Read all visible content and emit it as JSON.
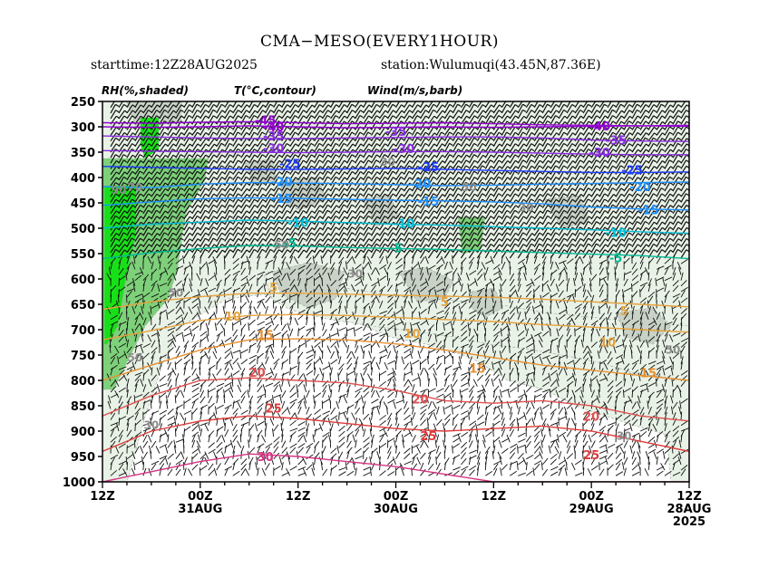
{
  "header": {
    "title": "CMA−MESO(EVERY1HOUR)",
    "starttime": "starttime:12Z28AUG2025",
    "station": "station:Wulumuqi(43.45N,87.36E)"
  },
  "legend_labels": {
    "rh": "RH(%,shaded)",
    "temp": "T(°C,contour)",
    "wind": "Wind(m/s,barb)"
  },
  "chart_data": {
    "type": "time-pressure cross section",
    "title": "CMA−MESO(EVERY1HOUR)",
    "variables": [
      "RH(%,shaded)",
      "T(°C,contour)",
      "Wind(m/s,barb)"
    ],
    "x_axis_direction": "time decreasing left to right",
    "x_ticks": [
      {
        "hour_from_left": 0,
        "label": "12Z",
        "sub": ""
      },
      {
        "hour_from_left": 12,
        "label": "00Z",
        "sub": "31AUG"
      },
      {
        "hour_from_left": 24,
        "label": "12Z",
        "sub": ""
      },
      {
        "hour_from_left": 36,
        "label": "00Z",
        "sub": "30AUG"
      },
      {
        "hour_from_left": 48,
        "label": "12Z",
        "sub": ""
      },
      {
        "hour_from_left": 60,
        "label": "00Z",
        "sub": "29AUG"
      },
      {
        "hour_from_left": 72,
        "label": "12Z",
        "sub": "28AUG",
        "sub2": "2025"
      }
    ],
    "y_levels": [
      250,
      300,
      350,
      400,
      450,
      500,
      550,
      600,
      650,
      700,
      750,
      800,
      850,
      900,
      950,
      1000
    ],
    "ylim": [
      1000,
      250
    ],
    "temperature_contours": [
      {
        "value": -45,
        "color": "#9400d3",
        "pressure": [
          292,
          293,
          291,
          290,
          292,
          294,
          293,
          292,
          294,
          296,
          297,
          298,
          299
        ]
      },
      {
        "value": -40,
        "color": "#9400d3",
        "pressure": [
          300,
          301,
          300,
          298,
          300,
          302,
          301,
          300,
          301,
          300,
          299,
          298,
          297
        ]
      },
      {
        "value": -35,
        "color": "#8a2be2",
        "pressure": [
          318,
          320,
          322,
          323,
          323,
          322,
          321,
          320,
          320,
          322,
          326,
          328,
          329
        ]
      },
      {
        "value": -30,
        "color": "#8a2be2",
        "pressure": [
          347,
          348,
          349,
          350,
          351,
          350,
          349,
          349,
          350,
          352,
          354,
          355,
          355
        ]
      },
      {
        "value": -25,
        "color": "#1e3cff",
        "pressure": [
          378,
          380,
          382,
          384,
          384,
          383,
          382,
          384,
          386,
          388,
          390,
          390,
          389
        ]
      },
      {
        "value": -20,
        "color": "#1e90ff",
        "pressure": [
          418,
          420,
          413,
          410,
          411,
          412,
          414,
          416,
          415,
          413,
          412,
          410,
          409
        ]
      },
      {
        "value": -15,
        "color": "#1e90ff",
        "pressure": [
          455,
          448,
          442,
          440,
          441,
          443,
          445,
          446,
          448,
          452,
          458,
          462,
          464
        ]
      },
      {
        "value": -10,
        "color": "#00bcd4",
        "pressure": [
          500,
          492,
          488,
          484,
          486,
          489,
          492,
          494,
          497,
          500,
          503,
          507,
          510
        ]
      },
      {
        "value": -5,
        "color": "#00b894",
        "pressure": [
          560,
          548,
          540,
          534,
          535,
          538,
          540,
          542,
          545,
          548,
          551,
          554,
          560
        ]
      },
      {
        "value": 5,
        "color": "#e6a23c",
        "pressure": [
          660,
          645,
          635,
          628,
          628,
          630,
          632,
          634,
          636,
          640,
          645,
          650,
          655
        ]
      },
      {
        "value": 10,
        "color": "#e6a23c",
        "pressure": [
          720,
          702,
          682,
          672,
          670,
          672,
          676,
          680,
          684,
          690,
          695,
          700,
          705
        ]
      },
      {
        "value": 15,
        "color": "#e89030",
        "pressure": [
          800,
          770,
          740,
          720,
          718,
          720,
          728,
          740,
          755,
          770,
          780,
          790,
          800
        ]
      },
      {
        "value": 20,
        "color": "#e05050",
        "pressure": [
          870,
          830,
          800,
          795,
          800,
          805,
          820,
          840,
          845,
          840,
          850,
          870,
          880
        ]
      },
      {
        "value": 25,
        "color": "#e03a3a",
        "pressure": [
          940,
          900,
          880,
          870,
          875,
          885,
          895,
          900,
          895,
          890,
          900,
          920,
          940
        ]
      },
      {
        "value": 30,
        "color": "#d63384",
        "pressure": [
          1000,
          980,
          960,
          945,
          950,
          960,
          970,
          985,
          1000,
          1000,
          1000,
          1000,
          1000
        ]
      }
    ],
    "contour_labels": [
      {
        "text": "-45",
        "hour": 20,
        "pressure": 288,
        "color": "#9400d3"
      },
      {
        "text": "-40",
        "hour": 21,
        "pressure": 302,
        "color": "#9400d3"
      },
      {
        "text": "-35",
        "hour": 21,
        "pressure": 320,
        "color": "#8a2be2"
      },
      {
        "text": "-30",
        "hour": 21,
        "pressure": 344,
        "color": "#8a2be2"
      },
      {
        "text": "-25",
        "hour": 23,
        "pressure": 374,
        "color": "#1e3cff"
      },
      {
        "text": "-20",
        "hour": 22,
        "pressure": 410,
        "color": "#1e90ff"
      },
      {
        "text": "-15",
        "hour": 22,
        "pressure": 443,
        "color": "#1e90ff"
      },
      {
        "text": "-10",
        "hour": 24,
        "pressure": 490,
        "color": "#00bcd4"
      },
      {
        "text": "-5",
        "hour": 23,
        "pressure": 530,
        "color": "#00b894"
      },
      {
        "text": "-35",
        "hour": 36,
        "pressure": 311,
        "color": "#8a2be2"
      },
      {
        "text": "-30",
        "hour": 37,
        "pressure": 345,
        "color": "#8a2be2"
      },
      {
        "text": "-25",
        "hour": 40,
        "pressure": 380,
        "color": "#1e3cff"
      },
      {
        "text": "-20",
        "hour": 39,
        "pressure": 413,
        "color": "#1e90ff"
      },
      {
        "text": "-15",
        "hour": 40,
        "pressure": 448,
        "color": "#1e90ff"
      },
      {
        "text": "-10",
        "hour": 37,
        "pressure": 492,
        "color": "#00bcd4"
      },
      {
        "text": "-5",
        "hour": 36,
        "pressure": 540,
        "color": "#00b894"
      },
      {
        "text": "-40",
        "hour": 61,
        "pressure": 300,
        "color": "#9400d3"
      },
      {
        "text": "-35",
        "hour": 63,
        "pressure": 328,
        "color": "#8a2be2"
      },
      {
        "text": "-30",
        "hour": 61,
        "pressure": 352,
        "color": "#8a2be2"
      },
      {
        "text": "-25",
        "hour": 65,
        "pressure": 387,
        "color": "#1e3cff"
      },
      {
        "text": "-20",
        "hour": 66,
        "pressure": 420,
        "color": "#1e90ff"
      },
      {
        "text": "-15",
        "hour": 67,
        "pressure": 465,
        "color": "#1e90ff"
      },
      {
        "text": "-10",
        "hour": 63,
        "pressure": 510,
        "color": "#00bcd4"
      },
      {
        "text": "-5",
        "hour": 63,
        "pressure": 560,
        "color": "#00b894"
      },
      {
        "text": "5",
        "hour": 21,
        "pressure": 618,
        "color": "#e6a23c"
      },
      {
        "text": "10",
        "hour": 16,
        "pressure": 675,
        "color": "#e6a23c"
      },
      {
        "text": "15",
        "hour": 20,
        "pressure": 712,
        "color": "#e89030"
      },
      {
        "text": "20",
        "hour": 19,
        "pressure": 786,
        "color": "#e05050"
      },
      {
        "text": "25",
        "hour": 21,
        "pressure": 856,
        "color": "#e03a3a"
      },
      {
        "text": "30",
        "hour": 20,
        "pressure": 952,
        "color": "#d63384"
      },
      {
        "text": "5",
        "hour": 42,
        "pressure": 646,
        "color": "#e6a23c"
      },
      {
        "text": "10",
        "hour": 38,
        "pressure": 709,
        "color": "#e6a23c"
      },
      {
        "text": "15",
        "hour": 46,
        "pressure": 778,
        "color": "#e89030"
      },
      {
        "text": "20",
        "hour": 39,
        "pressure": 838,
        "color": "#e05050"
      },
      {
        "text": "25",
        "hour": 40,
        "pressure": 911,
        "color": "#e03a3a"
      },
      {
        "text": "5",
        "hour": 64,
        "pressure": 664,
        "color": "#e6a23c"
      },
      {
        "text": "10",
        "hour": 62,
        "pressure": 726,
        "color": "#e6a23c"
      },
      {
        "text": "15",
        "hour": 67,
        "pressure": 787,
        "color": "#e89030"
      },
      {
        "text": "20",
        "hour": 60,
        "pressure": 872,
        "color": "#e05050"
      },
      {
        "text": "25",
        "hour": 60,
        "pressure": 948,
        "color": "#e03a3a"
      }
    ],
    "rh_labels": [
      {
        "text": "90",
        "hour": 2,
        "pressure": 425
      },
      {
        "text": "70",
        "hour": 4,
        "pressure": 420
      },
      {
        "text": "30",
        "hour": 35,
        "pressure": 370
      },
      {
        "text": "50",
        "hour": 45,
        "pressure": 420
      },
      {
        "text": "30",
        "hour": 52,
        "pressure": 460
      },
      {
        "text": "50",
        "hour": 22,
        "pressure": 533
      },
      {
        "text": "30",
        "hour": 31,
        "pressure": 590
      },
      {
        "text": "50",
        "hour": 4,
        "pressure": 755
      },
      {
        "text": "50",
        "hour": 9,
        "pressure": 628
      },
      {
        "text": "30",
        "hour": 6,
        "pressure": 888
      },
      {
        "text": "30",
        "hour": 64,
        "pressure": 910
      },
      {
        "text": "50",
        "hour": 70,
        "pressure": 740
      }
    ],
    "rh_shading": [
      {
        "level": "moist",
        "color": "#e8f2e6"
      },
      {
        "level": "very_moist",
        "color": "#7ed17a"
      },
      {
        "level": "saturated",
        "color": "#18e018"
      },
      {
        "level": "dry",
        "color": "#c8d2c6"
      }
    ]
  }
}
